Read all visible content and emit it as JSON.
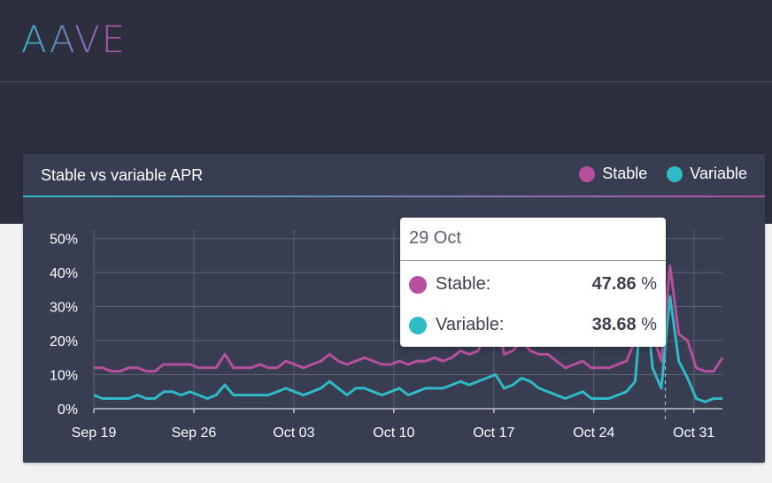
{
  "brand": {
    "logo_text": "AAVE"
  },
  "card": {
    "title": "Stable vs variable APR",
    "legend": [
      {
        "label": "Stable",
        "color": "#b6509e"
      },
      {
        "label": "Variable",
        "color": "#2ebac6"
      }
    ]
  },
  "tooltip": {
    "date": "29 Oct",
    "rows": [
      {
        "label": "Stable:",
        "value": "47.86",
        "unit": "%",
        "color": "#b6509e"
      },
      {
        "label": "Variable:",
        "value": "38.68",
        "unit": "%",
        "color": "#2ebac6"
      }
    ]
  },
  "chart_data": {
    "type": "line",
    "title": "Stable vs variable APR",
    "x_start": "2020-09-19",
    "x_end": "2020-11-02",
    "x_ticks": [
      "Sep 19",
      "Sep 26",
      "Oct 03",
      "Oct 10",
      "Oct 17",
      "Oct 24",
      "Oct 31"
    ],
    "y_ticks": [
      "0%",
      "10%",
      "20%",
      "30%",
      "40%",
      "50%"
    ],
    "ylim": [
      0,
      52
    ],
    "grid": true,
    "legend_position": "top-right",
    "series": [
      {
        "name": "Stable",
        "color": "#b6509e",
        "values": [
          12,
          12,
          11,
          11,
          12,
          12,
          11,
          11,
          13,
          13,
          13,
          13,
          12,
          12,
          12,
          16,
          12,
          12,
          12,
          13,
          12,
          12,
          14,
          13,
          12,
          13,
          14,
          16,
          14,
          13,
          14,
          15,
          14,
          13,
          13,
          14,
          13,
          14,
          14,
          15,
          14,
          15,
          17,
          16,
          17,
          22,
          27,
          16,
          17,
          20,
          17,
          16,
          16,
          14,
          12,
          13,
          14,
          12,
          12,
          12,
          13,
          14,
          20,
          47.86,
          22,
          14,
          42,
          22,
          20,
          12,
          11,
          11,
          15
        ]
      },
      {
        "name": "Variable",
        "color": "#2ebac6",
        "values": [
          4,
          3,
          3,
          3,
          3,
          4,
          3,
          3,
          5,
          5,
          4,
          5,
          4,
          3,
          4,
          7,
          4,
          4,
          4,
          4,
          4,
          5,
          6,
          5,
          4,
          5,
          6,
          8,
          6,
          4,
          6,
          6,
          5,
          4,
          5,
          6,
          4,
          5,
          6,
          6,
          6,
          7,
          8,
          7,
          8,
          9,
          10,
          6,
          7,
          9,
          8,
          6,
          5,
          4,
          3,
          4,
          5,
          3,
          3,
          3,
          4,
          5,
          8,
          38.68,
          12,
          6,
          33,
          14,
          9,
          3,
          2,
          3,
          3
        ]
      }
    ]
  }
}
